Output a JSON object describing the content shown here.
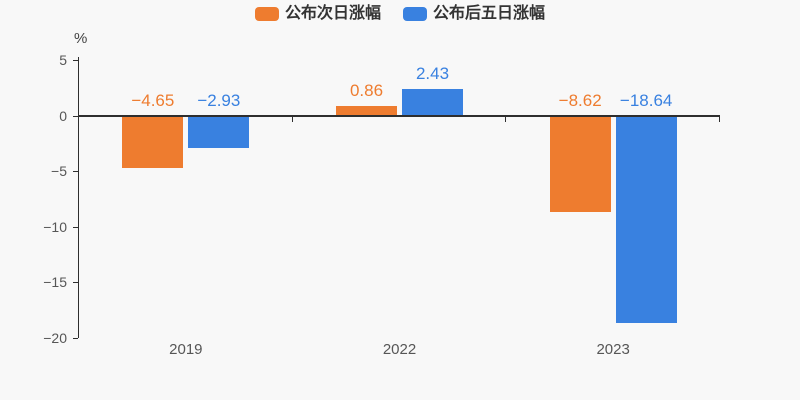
{
  "chart_data": {
    "type": "bar",
    "title": "",
    "categories": [
      "2019",
      "2022",
      "2023"
    ],
    "series": [
      {
        "name": "公布次日涨幅",
        "color": "#ee7c2f",
        "values": [
          -4.65,
          0.86,
          -8.62
        ],
        "labels": [
          "−4.65",
          "0.86",
          "−8.62"
        ]
      },
      {
        "name": "公布后五日涨幅",
        "color": "#3981e0",
        "values": [
          -2.93,
          2.43,
          -18.64
        ],
        "labels": [
          "−2.93",
          "2.43",
          "−18.64"
        ]
      }
    ],
    "xlabel": "",
    "ylabel": "%",
    "ylim": [
      -20,
      5
    ],
    "yticks": [
      5,
      0,
      -5,
      -10,
      -15,
      -20
    ],
    "ytick_labels": [
      "5",
      "0",
      "−5",
      "−10",
      "−15",
      "−20"
    ],
    "legend_position": "top",
    "grid": false,
    "value_labels": true,
    "axis_color": "#2e2e2e",
    "label_color": "#565656",
    "background_color": "#f8f8f8"
  }
}
